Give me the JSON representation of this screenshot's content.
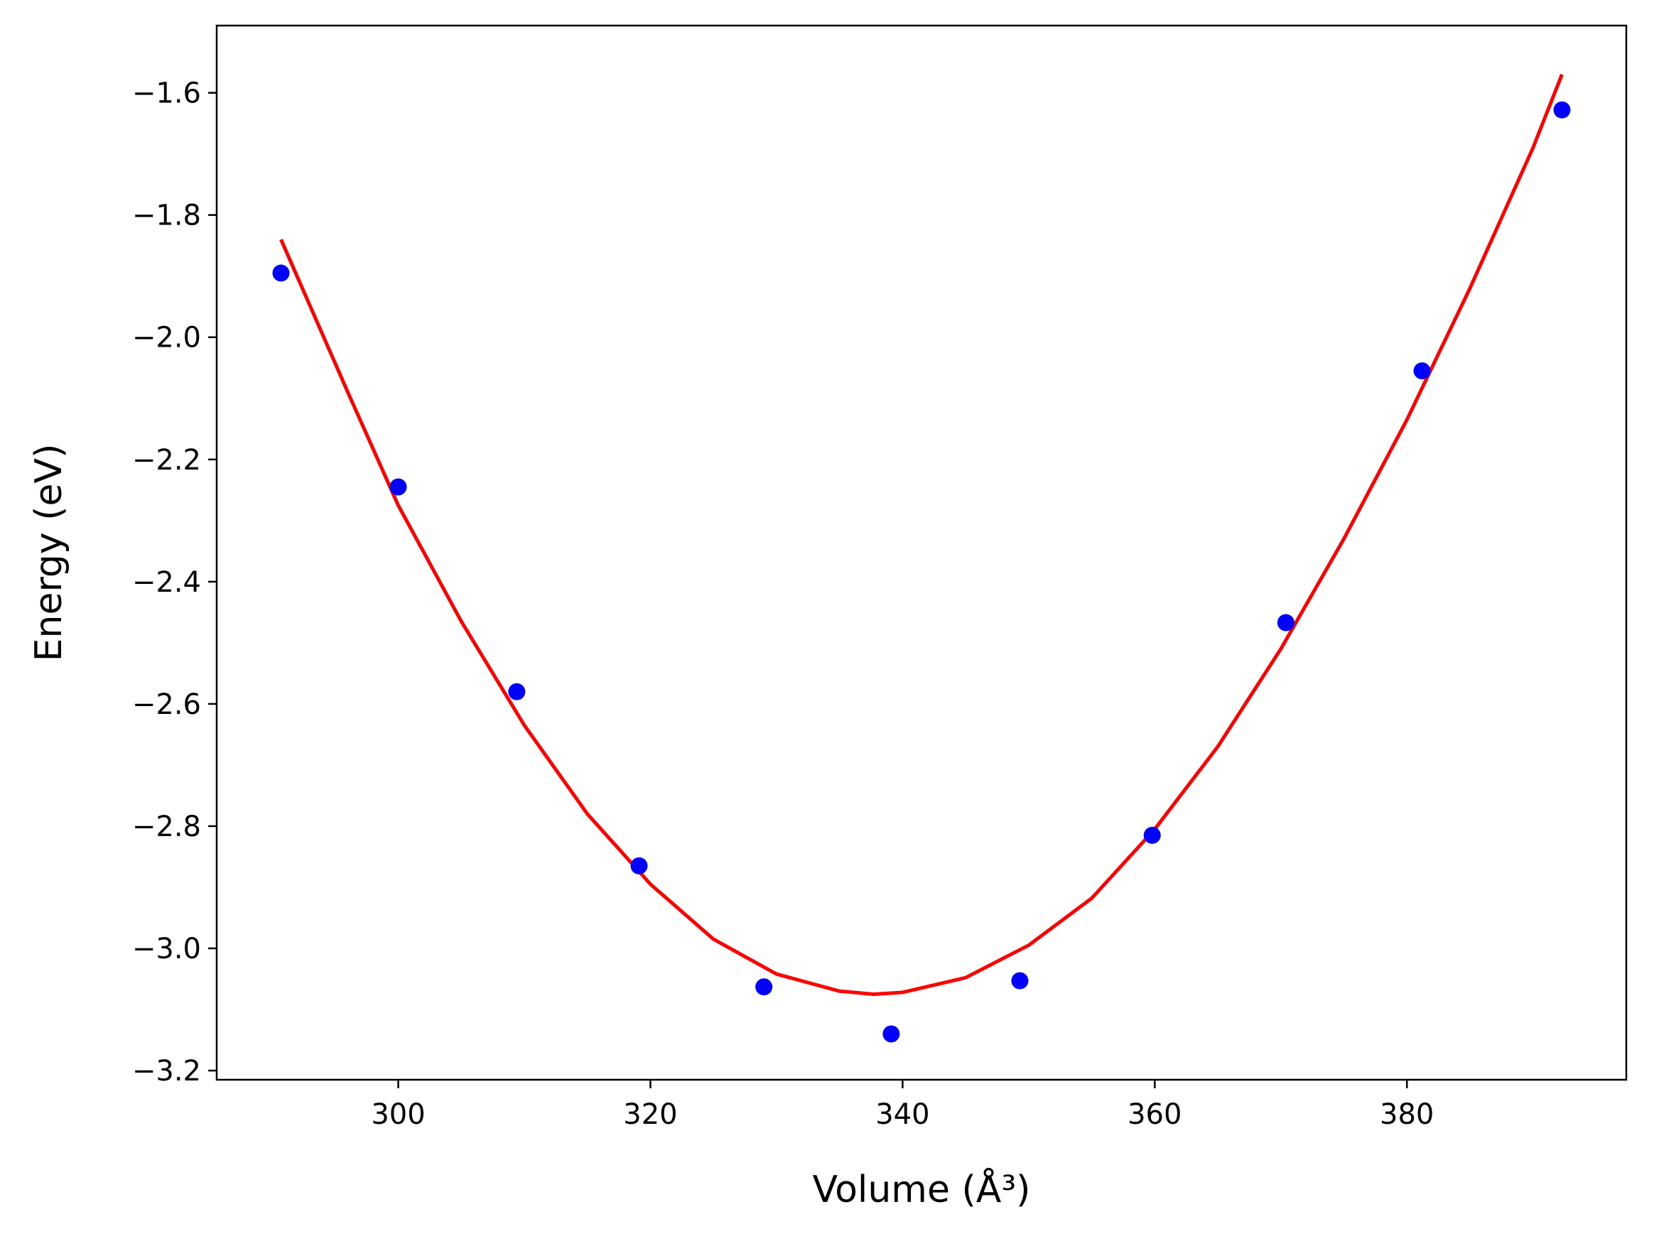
{
  "chart_data": {
    "type": "scatter",
    "title": "",
    "xlabel": "Volume (Å³)",
    "ylabel": "Energy (eV)",
    "xlim": [
      285.6,
      397.4
    ],
    "ylim": [
      -3.215,
      -1.49
    ],
    "x_ticks": [
      300,
      320,
      340,
      360,
      380
    ],
    "x_tick_labels": [
      "300",
      "320",
      "340",
      "360",
      "380"
    ],
    "y_ticks": [
      -1.6,
      -1.8,
      -2.0,
      -2.2,
      -2.4,
      -2.6,
      -2.8,
      -3.0,
      -3.2
    ],
    "y_tick_labels": [
      "−1.6",
      "−1.8",
      "−2.0",
      "−2.2",
      "−2.4",
      "−2.6",
      "−2.8",
      "−3.0",
      "−3.2"
    ],
    "grid": false,
    "series": [
      {
        "kind": "scatter",
        "color": "#0000ff",
        "points": [
          {
            "x": 290.7,
            "y": -1.895
          },
          {
            "x": 300.0,
            "y": -2.245
          },
          {
            "x": 309.4,
            "y": -2.58
          },
          {
            "x": 319.1,
            "y": -2.865
          },
          {
            "x": 329.0,
            "y": -3.063
          },
          {
            "x": 339.1,
            "y": -3.14
          },
          {
            "x": 349.3,
            "y": -3.053
          },
          {
            "x": 359.8,
            "y": -2.815
          },
          {
            "x": 370.4,
            "y": -2.467
          },
          {
            "x": 381.2,
            "y": -2.055
          },
          {
            "x": 392.3,
            "y": -1.628
          }
        ]
      },
      {
        "kind": "line",
        "color": "#ff0000",
        "points": [
          {
            "x": 290.7,
            "y": -1.84
          },
          {
            "x": 296.0,
            "y": -2.09
          },
          {
            "x": 300.0,
            "y": -2.275
          },
          {
            "x": 305.0,
            "y": -2.465
          },
          {
            "x": 310.0,
            "y": -2.635
          },
          {
            "x": 315.0,
            "y": -2.78
          },
          {
            "x": 320.0,
            "y": -2.895
          },
          {
            "x": 325.0,
            "y": -2.985
          },
          {
            "x": 330.0,
            "y": -3.042
          },
          {
            "x": 335.0,
            "y": -3.07
          },
          {
            "x": 337.7,
            "y": -3.075
          },
          {
            "x": 340.0,
            "y": -3.072
          },
          {
            "x": 345.0,
            "y": -3.048
          },
          {
            "x": 350.0,
            "y": -2.995
          },
          {
            "x": 355.0,
            "y": -2.918
          },
          {
            "x": 360.0,
            "y": -2.805
          },
          {
            "x": 365.0,
            "y": -2.67
          },
          {
            "x": 370.0,
            "y": -2.51
          },
          {
            "x": 375.0,
            "y": -2.33
          },
          {
            "x": 380.0,
            "y": -2.135
          },
          {
            "x": 385.0,
            "y": -1.92
          },
          {
            "x": 390.0,
            "y": -1.69
          },
          {
            "x": 392.3,
            "y": -1.57
          }
        ]
      }
    ]
  }
}
